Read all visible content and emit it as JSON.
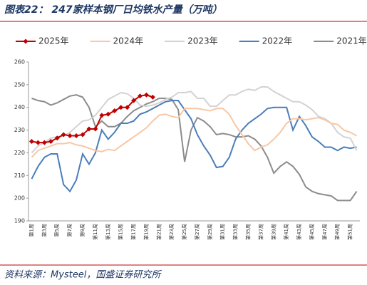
{
  "chart_data": {
    "type": "line",
    "title": "图表22： 247家样本钢厂日均铁水产量（万吨）",
    "source": "资料来源：Mysteel，国盛证券研究所",
    "categories": [
      "第1周",
      null,
      "第3周",
      null,
      "第5周",
      null,
      "第7周",
      null,
      "第9周",
      null,
      "第11周",
      null,
      "第13周",
      null,
      "第15周",
      null,
      "第17周",
      null,
      "第19周",
      null,
      "第21周",
      null,
      "第23周",
      null,
      "第25周",
      null,
      "第27周",
      null,
      "第29周",
      null,
      "第31周",
      null,
      "第33周",
      null,
      "第35周",
      null,
      "第37周",
      null,
      "第39周",
      null,
      "第41周",
      null,
      "第43周",
      null,
      "第45周",
      null,
      "第47周",
      null,
      "第49周",
      null,
      "第51周",
      null
    ],
    "ylim": [
      190,
      260
    ],
    "yticks": [
      190,
      200,
      210,
      220,
      230,
      240,
      250,
      260
    ],
    "series": [
      {
        "name": "2025年",
        "color": "#c00000",
        "marker": "diamond",
        "values": [
          225,
          224.5,
          224.5,
          225,
          226.5,
          228,
          227.5,
          227.5,
          228,
          230.5,
          230.5,
          236.5,
          237,
          238.5,
          240,
          240,
          243,
          245,
          245.5,
          244.5,
          null,
          null,
          null,
          null,
          null,
          null,
          null,
          null,
          null,
          null,
          null,
          null,
          null,
          null,
          null,
          null,
          null,
          null,
          null,
          null,
          null,
          null,
          null,
          null,
          null,
          null,
          null,
          null,
          null,
          null,
          null,
          null
        ]
      },
      {
        "name": "2024年",
        "color": "#f6c8a6",
        "values": [
          218,
          221,
          222,
          223,
          224,
          224,
          224.5,
          223.5,
          223,
          222,
          221,
          220.5,
          221.5,
          221,
          223,
          225,
          227,
          229,
          231,
          234,
          236.5,
          237,
          236,
          235.5,
          239.5,
          239.5,
          239.5,
          239,
          238.5,
          239.5,
          239.5,
          237,
          232,
          228,
          224,
          221,
          222.5,
          223.5,
          226,
          229,
          233,
          235,
          235,
          234.5,
          235,
          235.5,
          234.5,
          233,
          232.5,
          230,
          229,
          227.5
        ]
      },
      {
        "name": "2023年",
        "color": "#d3d3d3",
        "values": [
          220,
          223,
          224.5,
          226.5,
          227,
          227.5,
          229,
          231.5,
          234,
          234.5,
          236.5,
          240,
          243.5,
          245,
          246.5,
          246,
          244,
          241,
          240.5,
          241,
          242,
          243.5,
          244.5,
          246.5,
          246.5,
          247,
          244,
          244,
          240.5,
          240.5,
          243,
          245.5,
          245.5,
          247,
          248,
          247.5,
          249,
          249,
          247,
          245.5,
          244,
          242.5,
          242.5,
          241,
          239,
          236,
          235,
          233,
          229,
          227,
          226.5,
          221
        ]
      },
      {
        "name": "2022年",
        "color": "#4a7ebb",
        "values": [
          208.5,
          214,
          218,
          219.5,
          219.5,
          206,
          203,
          208,
          219.5,
          215,
          220,
          230,
          226,
          229,
          233,
          233,
          234,
          237,
          238,
          239.5,
          241,
          242.5,
          243,
          243,
          239,
          235,
          228,
          223,
          219,
          213.5,
          214,
          218,
          226,
          230,
          233,
          235,
          237,
          239.5,
          240,
          240,
          240,
          230,
          236,
          232,
          227,
          225,
          222.5,
          222.5,
          221,
          222.5,
          222,
          222.5
        ]
      },
      {
        "name": "2021年",
        "color": "#8c8c8c",
        "values": [
          244,
          243,
          242.5,
          241,
          242,
          243.5,
          245,
          245.5,
          244.5,
          240,
          231.5,
          234,
          231.5,
          231.5,
          233,
          236,
          238.5,
          240,
          241.5,
          242.5,
          244,
          244,
          243.5,
          239,
          216,
          230,
          235.5,
          234,
          231.5,
          228,
          228.5,
          228,
          227,
          227,
          227.5,
          226,
          223,
          218,
          211,
          214,
          216,
          214,
          210.5,
          205,
          203,
          202,
          201.5,
          201,
          199,
          199,
          199,
          203
        ]
      }
    ]
  }
}
